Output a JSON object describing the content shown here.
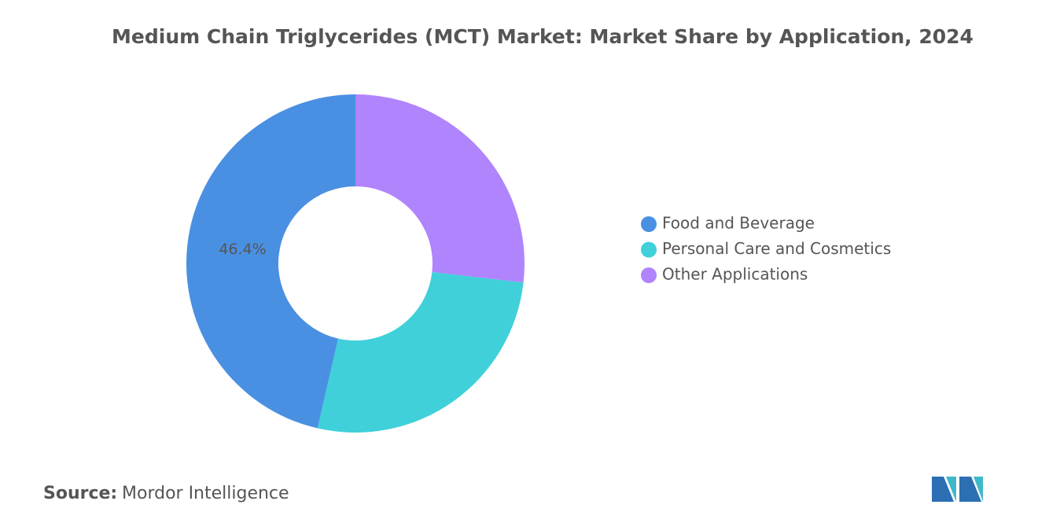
{
  "chart_data": {
    "type": "pie",
    "title": "Medium Chain Triglycerides (MCT) Market: Market Share by Application, 2024",
    "categories": [
      "Food and Beverage",
      "Personal Care and Cosmetics",
      "Other Applications"
    ],
    "values": [
      46.4,
      26.8,
      26.8
    ],
    "value_labels": [
      "46.4%",
      null,
      null
    ],
    "colors": [
      "#4a90e2",
      "#3fd0d9",
      "#b084fc"
    ],
    "source_label": "Source:",
    "source": "Mordor Intelligence"
  }
}
